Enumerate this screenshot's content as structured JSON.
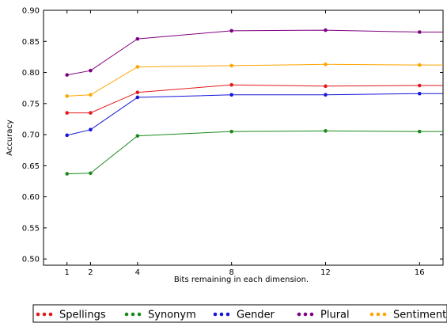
{
  "chart_data": {
    "type": "line",
    "xlabel": "Bits remaining in each dimension.",
    "ylabel": "Accuracy",
    "x": [
      1,
      2,
      4,
      8,
      12,
      16
    ],
    "xticks": [
      "1",
      "2",
      "4",
      "8",
      "12",
      "16"
    ],
    "xlim": [
      0,
      17
    ],
    "ylim": [
      0.49,
      0.9
    ],
    "yticks": [
      "0.50",
      "0.55",
      "0.60",
      "0.65",
      "0.70",
      "0.75",
      "0.80",
      "0.85",
      "0.90"
    ],
    "grid": false,
    "legend_position": "bottom",
    "series": [
      {
        "name": "Spellings",
        "color": "#e31a1c",
        "values": [
          0.735,
          0.735,
          0.768,
          0.78,
          0.778,
          0.779
        ]
      },
      {
        "name": "Synonym",
        "color": "#1a8a1a",
        "values": [
          0.637,
          0.638,
          0.698,
          0.705,
          0.706,
          0.705
        ]
      },
      {
        "name": "Gender",
        "color": "#1515d9",
        "values": [
          0.699,
          0.708,
          0.76,
          0.764,
          0.764,
          0.766
        ]
      },
      {
        "name": "Plural",
        "color": "#800080",
        "values": [
          0.796,
          0.803,
          0.854,
          0.867,
          0.868,
          0.865
        ]
      },
      {
        "name": "Sentiment",
        "color": "#ffa500",
        "values": [
          0.762,
          0.764,
          0.809,
          0.811,
          0.813,
          0.812
        ]
      }
    ]
  }
}
